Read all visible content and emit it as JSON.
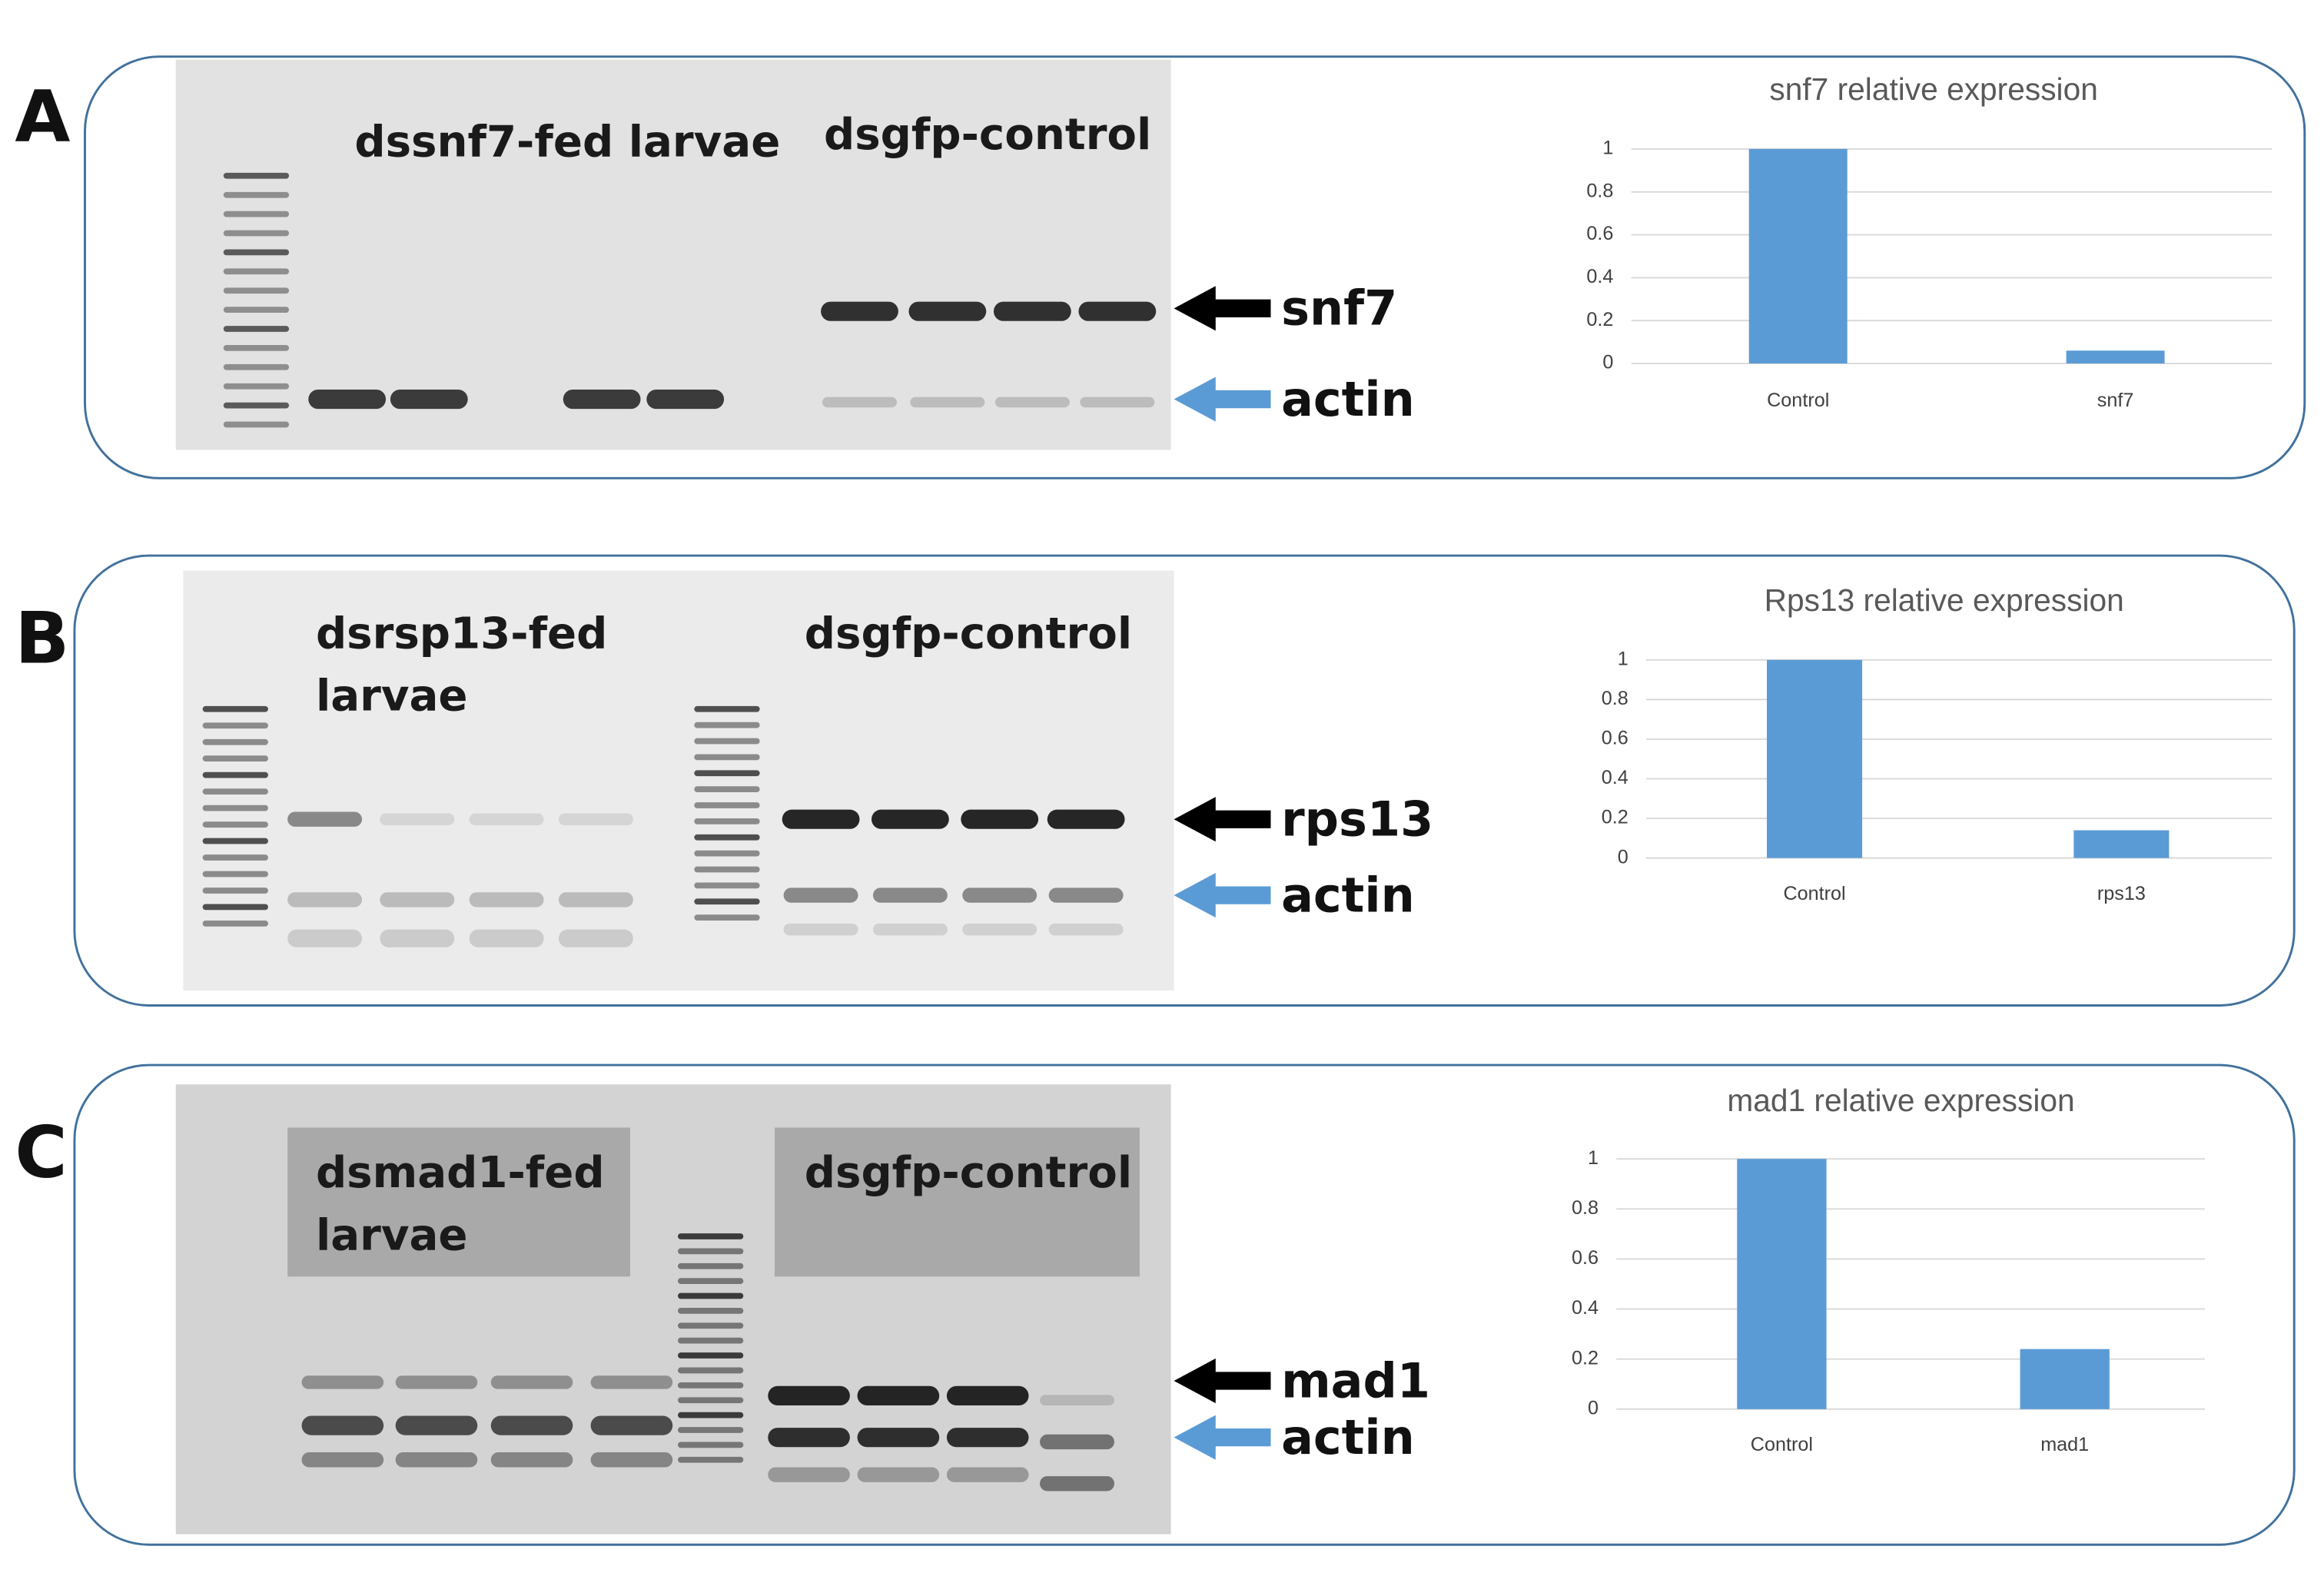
{
  "panels": [
    {
      "letter": "A",
      "group_labels": [
        [
          "dssnf7-fed larvae"
        ],
        [
          "dsgfp-control"
        ]
      ],
      "band_labels": [
        "snf7",
        "actin"
      ]
    },
    {
      "letter": "B",
      "group_labels": [
        [
          "dsrsp13-fed",
          "larvae"
        ],
        [
          "dsgfp-control"
        ]
      ],
      "band_labels": [
        "rps13",
        "actin"
      ]
    },
    {
      "letter": "C",
      "group_labels": [
        [
          "dsmad1-fed",
          "larvae"
        ],
        [
          "dsgfp-control"
        ]
      ],
      "band_labels": [
        "mad1",
        "actin"
      ]
    }
  ],
  "chart_data": [
    {
      "type": "bar",
      "title": "snf7 relative expression",
      "categories": [
        "Control",
        "snf7"
      ],
      "values": [
        1,
        0.06
      ],
      "color": "#5b9bd5",
      "ylim": [
        0,
        1
      ],
      "yticks": [
        0,
        0.2,
        0.4,
        0.6,
        0.8,
        1
      ],
      "grid": true
    },
    {
      "type": "bar",
      "title": "Rps13 relative expression",
      "categories": [
        "Control",
        "rps13"
      ],
      "values": [
        1,
        0.14
      ],
      "color": "#5b9bd5",
      "ylim": [
        0,
        1
      ],
      "yticks": [
        0,
        0.2,
        0.4,
        0.6,
        0.8,
        1
      ],
      "grid": true
    },
    {
      "type": "bar",
      "title": "mad1 relative expression",
      "categories": [
        "Control",
        "mad1"
      ],
      "values": [
        1,
        0.24
      ],
      "color": "#5b9bd5",
      "ylim": [
        0,
        1
      ],
      "yticks": [
        0,
        0.2,
        0.4,
        0.6,
        0.8,
        1
      ],
      "grid": true
    }
  ]
}
